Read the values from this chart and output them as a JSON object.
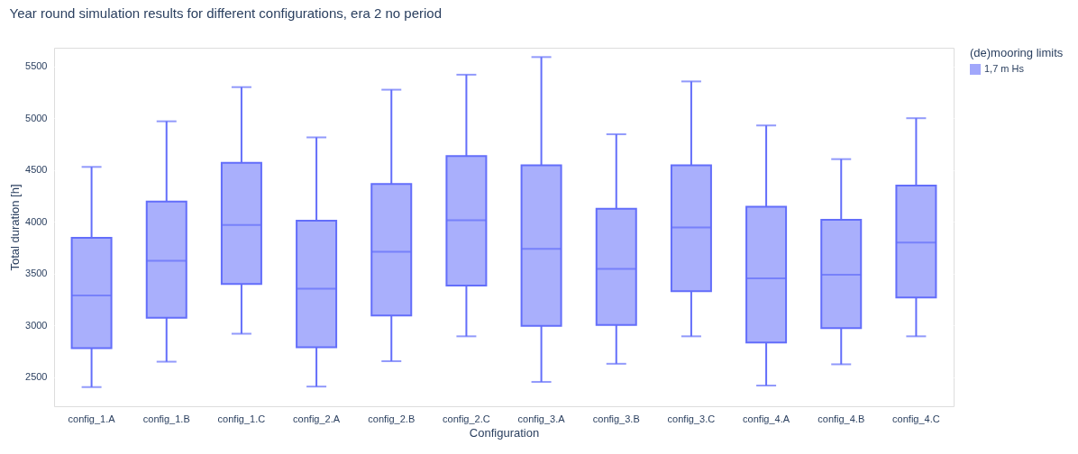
{
  "chart_data": {
    "type": "box",
    "title": "Year round simulation results for different configurations, era 2 no period",
    "xlabel": "Configuration",
    "ylabel": "Total duration [h]",
    "legend_title": "(de)mooring limits",
    "legend": "top right",
    "grid": "y",
    "categories": [
      "config_1.A",
      "config_1.B",
      "config_1.C",
      "config_2.A",
      "config_2.B",
      "config_2.C",
      "config_3.A",
      "config_3.B",
      "config_3.C",
      "config_4.A",
      "config_4.B",
      "config_4.C"
    ],
    "ylim": [
      2220,
      5680
    ],
    "yticks": [
      2500,
      3000,
      3500,
      4000,
      4500,
      5000,
      5500
    ],
    "series": [
      {
        "name": "1,7 m Hs",
        "color": "#636efa",
        "boxes": [
          {
            "low": 2405,
            "q1": 2780,
            "median": 3290,
            "q3": 3845,
            "high": 4530
          },
          {
            "low": 2650,
            "q1": 3075,
            "median": 3625,
            "q3": 4195,
            "high": 4970
          },
          {
            "low": 2920,
            "q1": 3400,
            "median": 3970,
            "q3": 4570,
            "high": 5300
          },
          {
            "low": 2410,
            "q1": 2790,
            "median": 3355,
            "q3": 4010,
            "high": 4815
          },
          {
            "low": 2655,
            "q1": 3095,
            "median": 3710,
            "q3": 4365,
            "high": 5275
          },
          {
            "low": 2895,
            "q1": 3385,
            "median": 4015,
            "q3": 4635,
            "high": 5420
          },
          {
            "low": 2455,
            "q1": 2995,
            "median": 3740,
            "q3": 4545,
            "high": 5590
          },
          {
            "low": 2630,
            "q1": 3005,
            "median": 3545,
            "q3": 4125,
            "high": 4845
          },
          {
            "low": 2895,
            "q1": 3330,
            "median": 3945,
            "q3": 4545,
            "high": 5355
          },
          {
            "low": 2420,
            "q1": 2835,
            "median": 3455,
            "q3": 4145,
            "high": 4930
          },
          {
            "low": 2625,
            "q1": 2975,
            "median": 3490,
            "q3": 4020,
            "high": 4605
          },
          {
            "low": 2895,
            "q1": 3270,
            "median": 3800,
            "q3": 4350,
            "high": 5000
          }
        ]
      }
    ]
  }
}
